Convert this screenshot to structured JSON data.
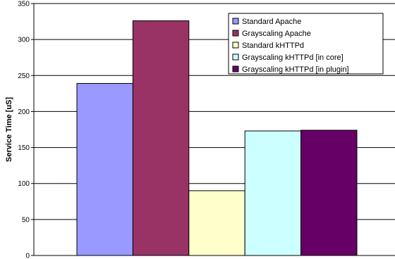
{
  "chart_data": {
    "type": "bar",
    "title": "",
    "xlabel": "",
    "ylabel": "Service Time [uS]",
    "ylim": [
      0,
      350
    ],
    "yticks": [
      0,
      50,
      100,
      150,
      200,
      250,
      300,
      350
    ],
    "grid": "horizontal",
    "legend_position": "top-right",
    "series": [
      {
        "name": "Standard Apache",
        "value": 239,
        "color": "#9999ff"
      },
      {
        "name": "Grayscaling Apache",
        "value": 326,
        "color": "#993366"
      },
      {
        "name": "Standard kHTTPd",
        "value": 90,
        "color": "#ffffcc"
      },
      {
        "name": "Grayscaling kHTTPd [in core]",
        "value": 173,
        "color": "#ccffff"
      },
      {
        "name": "Grayscaling kHTTPd [in plugin]",
        "value": 174,
        "color": "#660066"
      }
    ]
  }
}
